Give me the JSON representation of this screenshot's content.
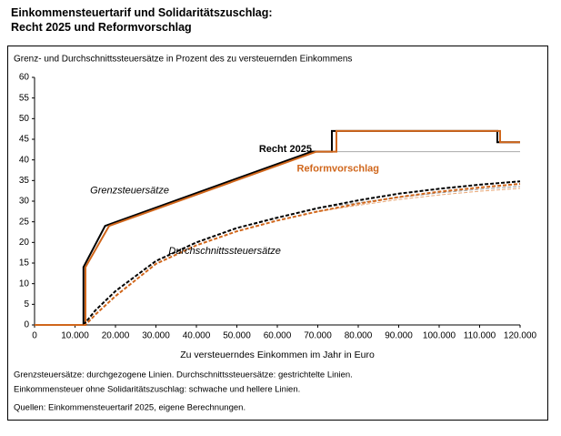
{
  "title_lines": [
    "Einkommensteuertarif und Solidaritätszuschlag:",
    "Recht 2025 und Reformvorschlag"
  ],
  "chart_data": {
    "type": "line",
    "subtitle": "Grenz- und Durchschnittssteuersätze in Prozent des zu versteuernden Einkommens",
    "x_label": "Zu versteuerndes Einkommen im Jahr in Euro",
    "xlim": [
      0,
      120000
    ],
    "xticks": [
      0,
      {
        "value": 10000,
        "label": "10.000"
      },
      {
        "value": 20000,
        "label": "20.000"
      },
      {
        "value": 30000,
        "label": "30.000"
      },
      {
        "value": 40000,
        "label": "40.000"
      },
      {
        "value": 50000,
        "label": "50.000"
      },
      {
        "value": 60000,
        "label": "60.000"
      },
      {
        "value": 70000,
        "label": "70.000"
      },
      {
        "value": 80000,
        "label": "80.000"
      },
      {
        "value": 90000,
        "label": "90.000"
      },
      {
        "value": 100000,
        "label": "100.000"
      },
      {
        "value": 110000,
        "label": "110.000"
      },
      {
        "value": 120000,
        "label": "120.000"
      }
    ],
    "ylim": [
      0,
      60
    ],
    "yticks": [
      0,
      5,
      10,
      15,
      20,
      25,
      30,
      35,
      40,
      45,
      50,
      55,
      60
    ],
    "grid": false,
    "series": [
      {
        "color": "#aaaaaa",
        "style": "solid",
        "weight": "thin",
        "x": [
          68480,
          120000
        ],
        "values": [
          42,
          42
        ]
      },
      {
        "color": "#999999",
        "style": "dashed",
        "weight": "thin",
        "x": [
          70000,
          80000,
          90000,
          100000,
          110000,
          120000
        ],
        "values": [
          28.3,
          29.6,
          30.9,
          32,
          32.9,
          33.6
        ]
      },
      {
        "color": "#e8a878",
        "style": "dashed",
        "weight": "thin",
        "x": [
          70000,
          80000,
          90000,
          100000,
          110000,
          120000
        ],
        "values": [
          27.5,
          29,
          30.4,
          31.5,
          32.4,
          33.1
        ]
      },
      {
        "color": "#000000",
        "style": "solid",
        "weight": "bold",
        "x": [
          0,
          12096,
          12096,
          17443,
          68480,
          73480,
          73480,
          114380,
          114380,
          120000
        ],
        "values": [
          0,
          0,
          14,
          24,
          42,
          42,
          47,
          47,
          44.3,
          44.3
        ]
      },
      {
        "color": "#d0661b",
        "style": "solid",
        "weight": "bold",
        "x": [
          0,
          12580,
          12580,
          18430,
          69660,
          74600,
          74600,
          115060,
          115060,
          120000
        ],
        "values": [
          0,
          0,
          14,
          24,
          42,
          42,
          47,
          47,
          44.3,
          44.3
        ]
      },
      {
        "color": "#000000",
        "style": "dashed",
        "weight": "bold",
        "x": [
          0,
          12096,
          15000,
          20000,
          30000,
          40000,
          50000,
          60000,
          70000,
          80000,
          90000,
          100000,
          110000,
          120000
        ],
        "values": [
          0,
          0,
          3.5,
          8.2,
          15.5,
          20,
          23.5,
          26,
          28.3,
          30.2,
          31.8,
          33,
          34,
          34.8
        ]
      },
      {
        "color": "#d0661b",
        "style": "dashed",
        "weight": "bold",
        "x": [
          0,
          12580,
          15000,
          20000,
          30000,
          40000,
          50000,
          60000,
          70000,
          80000,
          90000,
          100000,
          110000,
          120000
        ],
        "values": [
          0,
          0,
          2.5,
          7,
          14.8,
          19.3,
          22.7,
          25.3,
          27.5,
          29.4,
          31,
          32.3,
          33.3,
          34.2
        ]
      }
    ],
    "annotations": [
      {
        "text": "Recht 2025",
        "x": 62000,
        "y": 42.5,
        "color": "#000000",
        "style": "bold"
      },
      {
        "text": "Reformvorschlag",
        "x": 75000,
        "y": 37.8,
        "color": "#d0661b",
        "style": "bold"
      },
      {
        "text": "Grenzsteuersätze",
        "x": 23500,
        "y": 32.5,
        "color": "#000000",
        "style": "italic"
      },
      {
        "text": "Durchschnittssteuersätze",
        "x": 47000,
        "y": 17.8,
        "color": "#000000",
        "style": "italic"
      }
    ]
  },
  "notes": [
    "Grenzsteuersätze: durchgezogene Linien. Durchschnittssteuersätze: gestrichtelte Linien.",
    "Einkommensteuer ohne Solidaritätszuschlag: schwache und hellere Linien.",
    "Quellen: Einkommensteuertarif 2025, eigene Berechnungen."
  ]
}
